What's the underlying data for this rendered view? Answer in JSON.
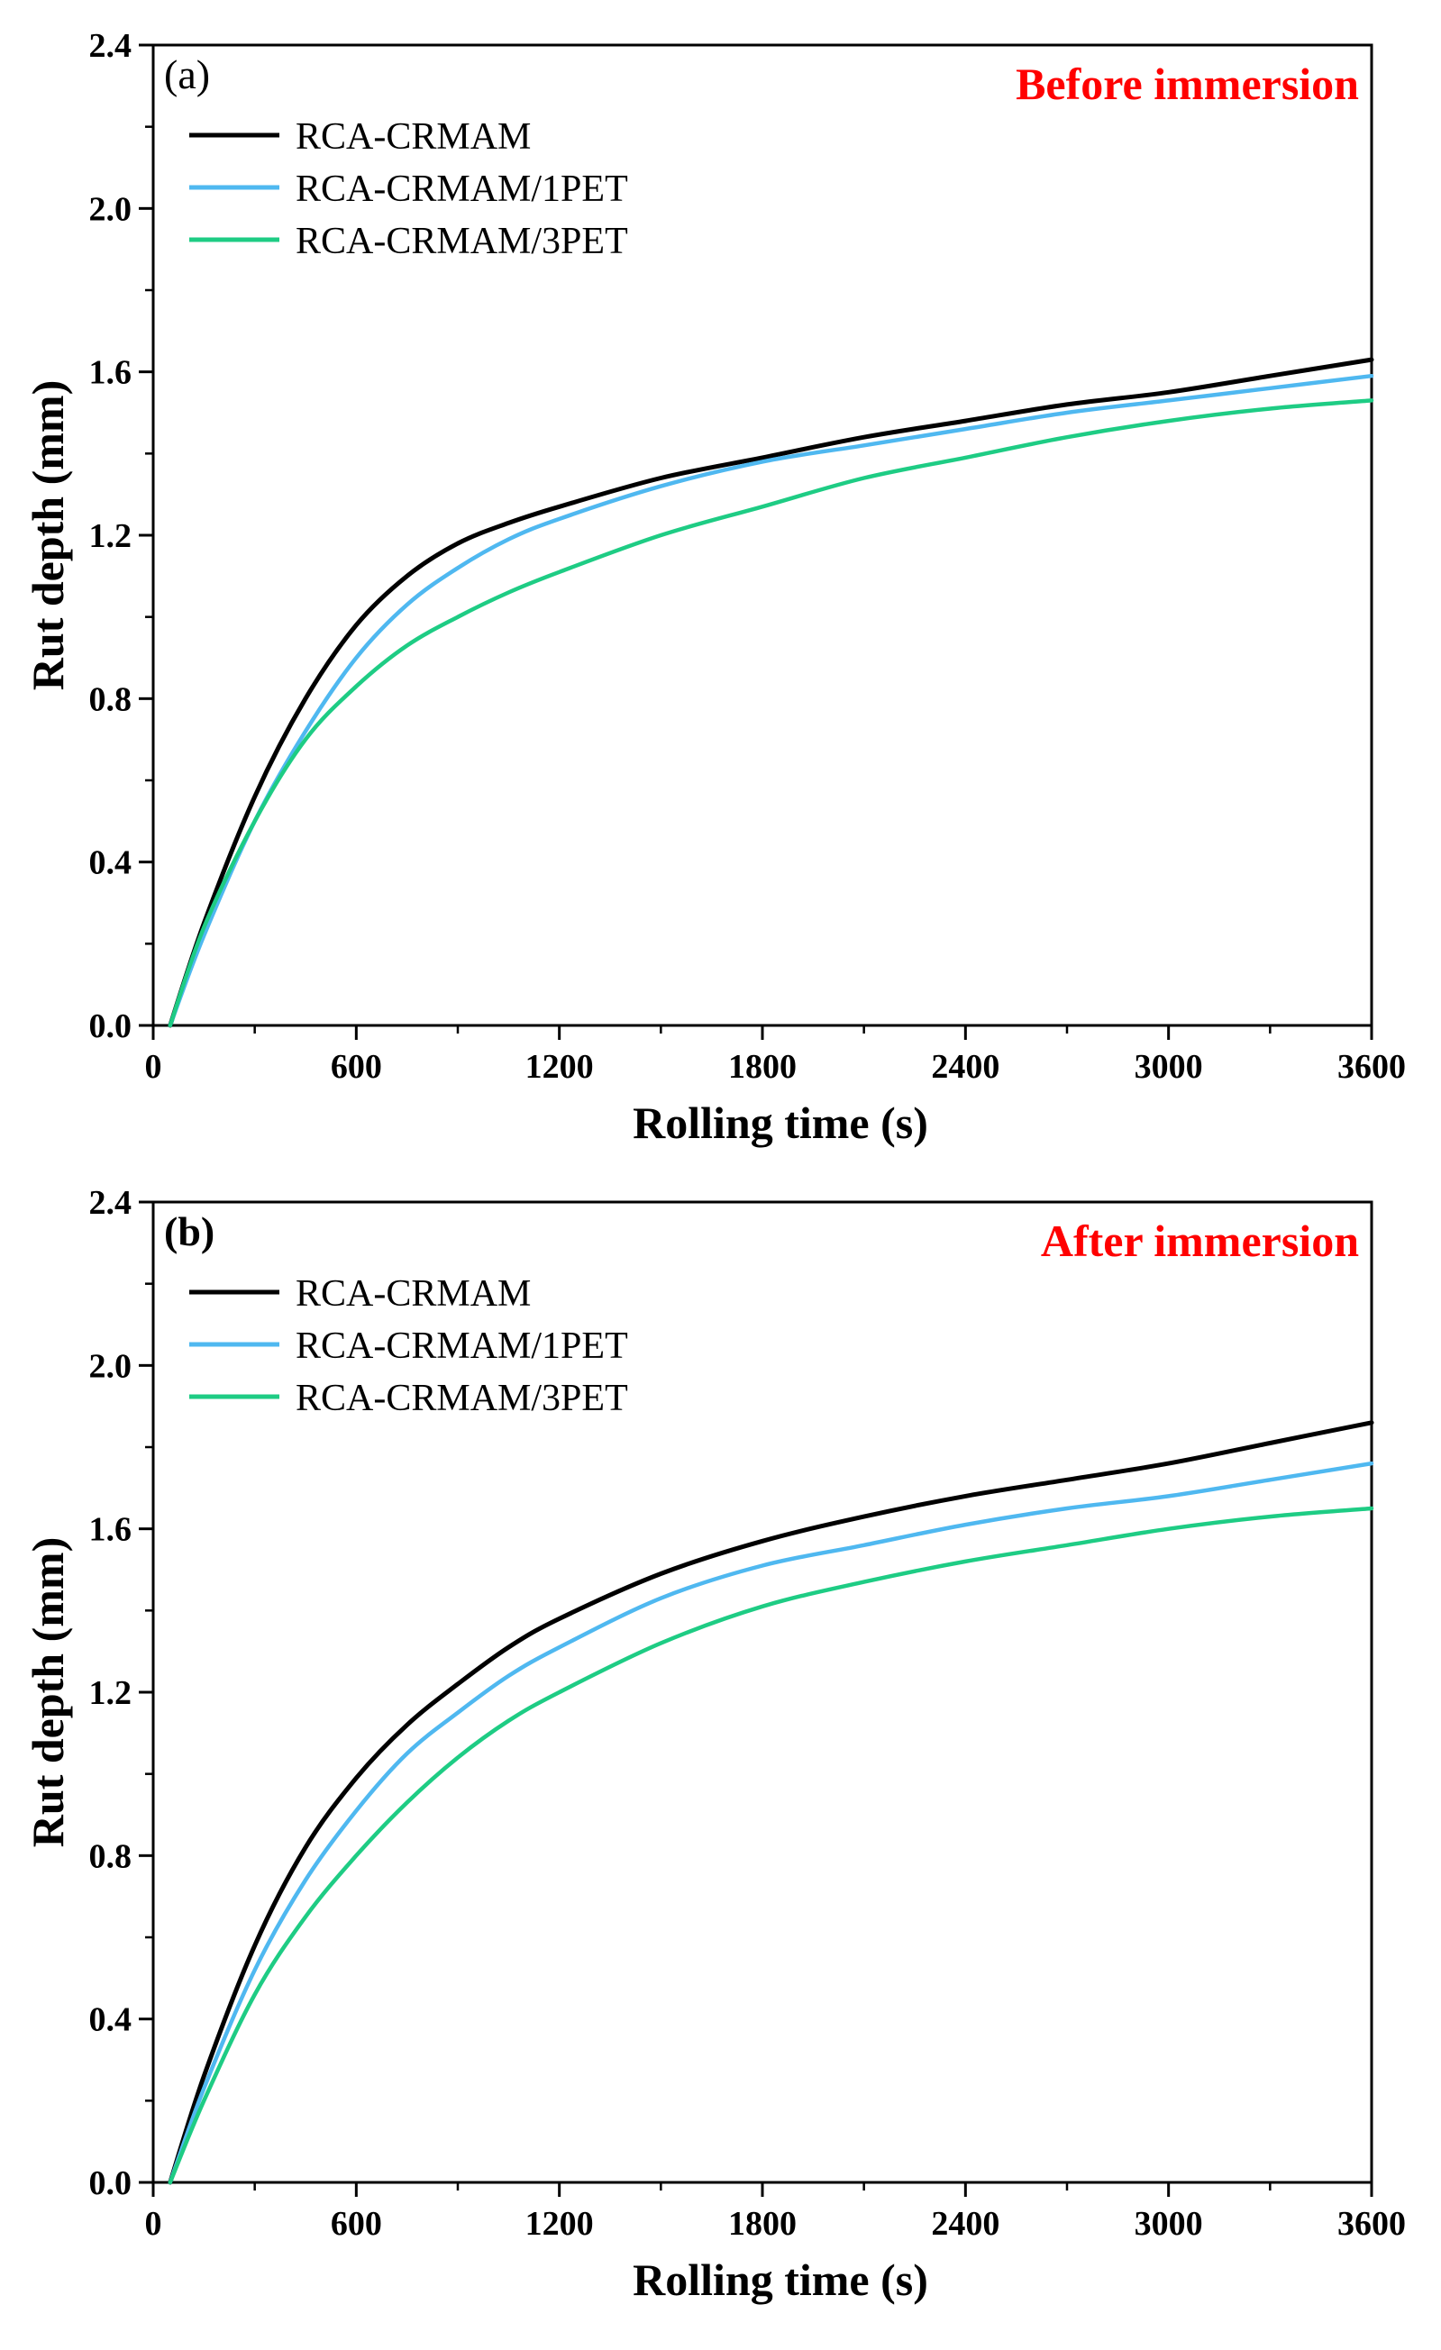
{
  "chart_data": [
    {
      "type": "line",
      "panel_label": "(a)",
      "annotation": "Before immersion",
      "annotation_color": "#ff0000",
      "xlabel": "Rolling time (s)",
      "ylabel": "Rut depth (mm)",
      "xlim": [
        0,
        3600
      ],
      "ylim": [
        0,
        2.4
      ],
      "xticks": [
        "0",
        "600",
        "1200",
        "1800",
        "2400",
        "3000",
        "3600"
      ],
      "yticks": [
        "0.0",
        "0.4",
        "0.8",
        "1.2",
        "1.6",
        "2.0",
        "2.4"
      ],
      "x": [
        50,
        150,
        300,
        450,
        600,
        750,
        900,
        1050,
        1200,
        1500,
        1800,
        2100,
        2400,
        2700,
        3000,
        3300,
        3600
      ],
      "series": [
        {
          "name": "RCA-CRMAM",
          "color": "#000000",
          "values": [
            0.0,
            0.25,
            0.56,
            0.8,
            0.98,
            1.1,
            1.18,
            1.23,
            1.27,
            1.34,
            1.39,
            1.44,
            1.48,
            1.52,
            1.55,
            1.59,
            1.63
          ]
        },
        {
          "name": "RCA-CRMAM/1PET",
          "color": "#4fb8f0",
          "values": [
            0.0,
            0.22,
            0.5,
            0.72,
            0.9,
            1.03,
            1.12,
            1.19,
            1.24,
            1.32,
            1.38,
            1.42,
            1.46,
            1.5,
            1.53,
            1.56,
            1.59
          ]
        },
        {
          "name": "RCA-CRMAM/3PET",
          "color": "#1ecc84",
          "values": [
            0.0,
            0.24,
            0.5,
            0.7,
            0.83,
            0.93,
            1.0,
            1.06,
            1.11,
            1.2,
            1.27,
            1.34,
            1.39,
            1.44,
            1.48,
            1.51,
            1.53
          ]
        }
      ]
    },
    {
      "type": "line",
      "panel_label": "(b)",
      "annotation": "After immersion",
      "annotation_color": "#ff0000",
      "xlabel": "Rolling time (s)",
      "ylabel": "Rut depth (mm)",
      "xlim": [
        0,
        3600
      ],
      "ylim": [
        0,
        2.4
      ],
      "xticks": [
        "0",
        "600",
        "1200",
        "1800",
        "2400",
        "3000",
        "3600"
      ],
      "yticks": [
        "0.0",
        "0.4",
        "0.8",
        "1.2",
        "1.6",
        "2.0",
        "2.4"
      ],
      "x": [
        50,
        150,
        300,
        450,
        600,
        750,
        900,
        1050,
        1200,
        1500,
        1800,
        2100,
        2400,
        2700,
        3000,
        3300,
        3600
      ],
      "series": [
        {
          "name": "RCA-CRMAM",
          "color": "#000000",
          "values": [
            0.0,
            0.26,
            0.58,
            0.82,
            0.99,
            1.12,
            1.22,
            1.31,
            1.38,
            1.49,
            1.57,
            1.63,
            1.68,
            1.72,
            1.76,
            1.81,
            1.86
          ]
        },
        {
          "name": "RCA-CRMAM/1PET",
          "color": "#4fb8f0",
          "values": [
            0.0,
            0.23,
            0.52,
            0.74,
            0.91,
            1.05,
            1.15,
            1.24,
            1.31,
            1.43,
            1.51,
            1.56,
            1.61,
            1.65,
            1.68,
            1.72,
            1.76
          ]
        },
        {
          "name": "RCA-CRMAM/3PET",
          "color": "#1ecc84",
          "values": [
            0.0,
            0.2,
            0.46,
            0.65,
            0.8,
            0.93,
            1.04,
            1.13,
            1.2,
            1.32,
            1.41,
            1.47,
            1.52,
            1.56,
            1.6,
            1.63,
            1.65
          ]
        }
      ]
    }
  ]
}
